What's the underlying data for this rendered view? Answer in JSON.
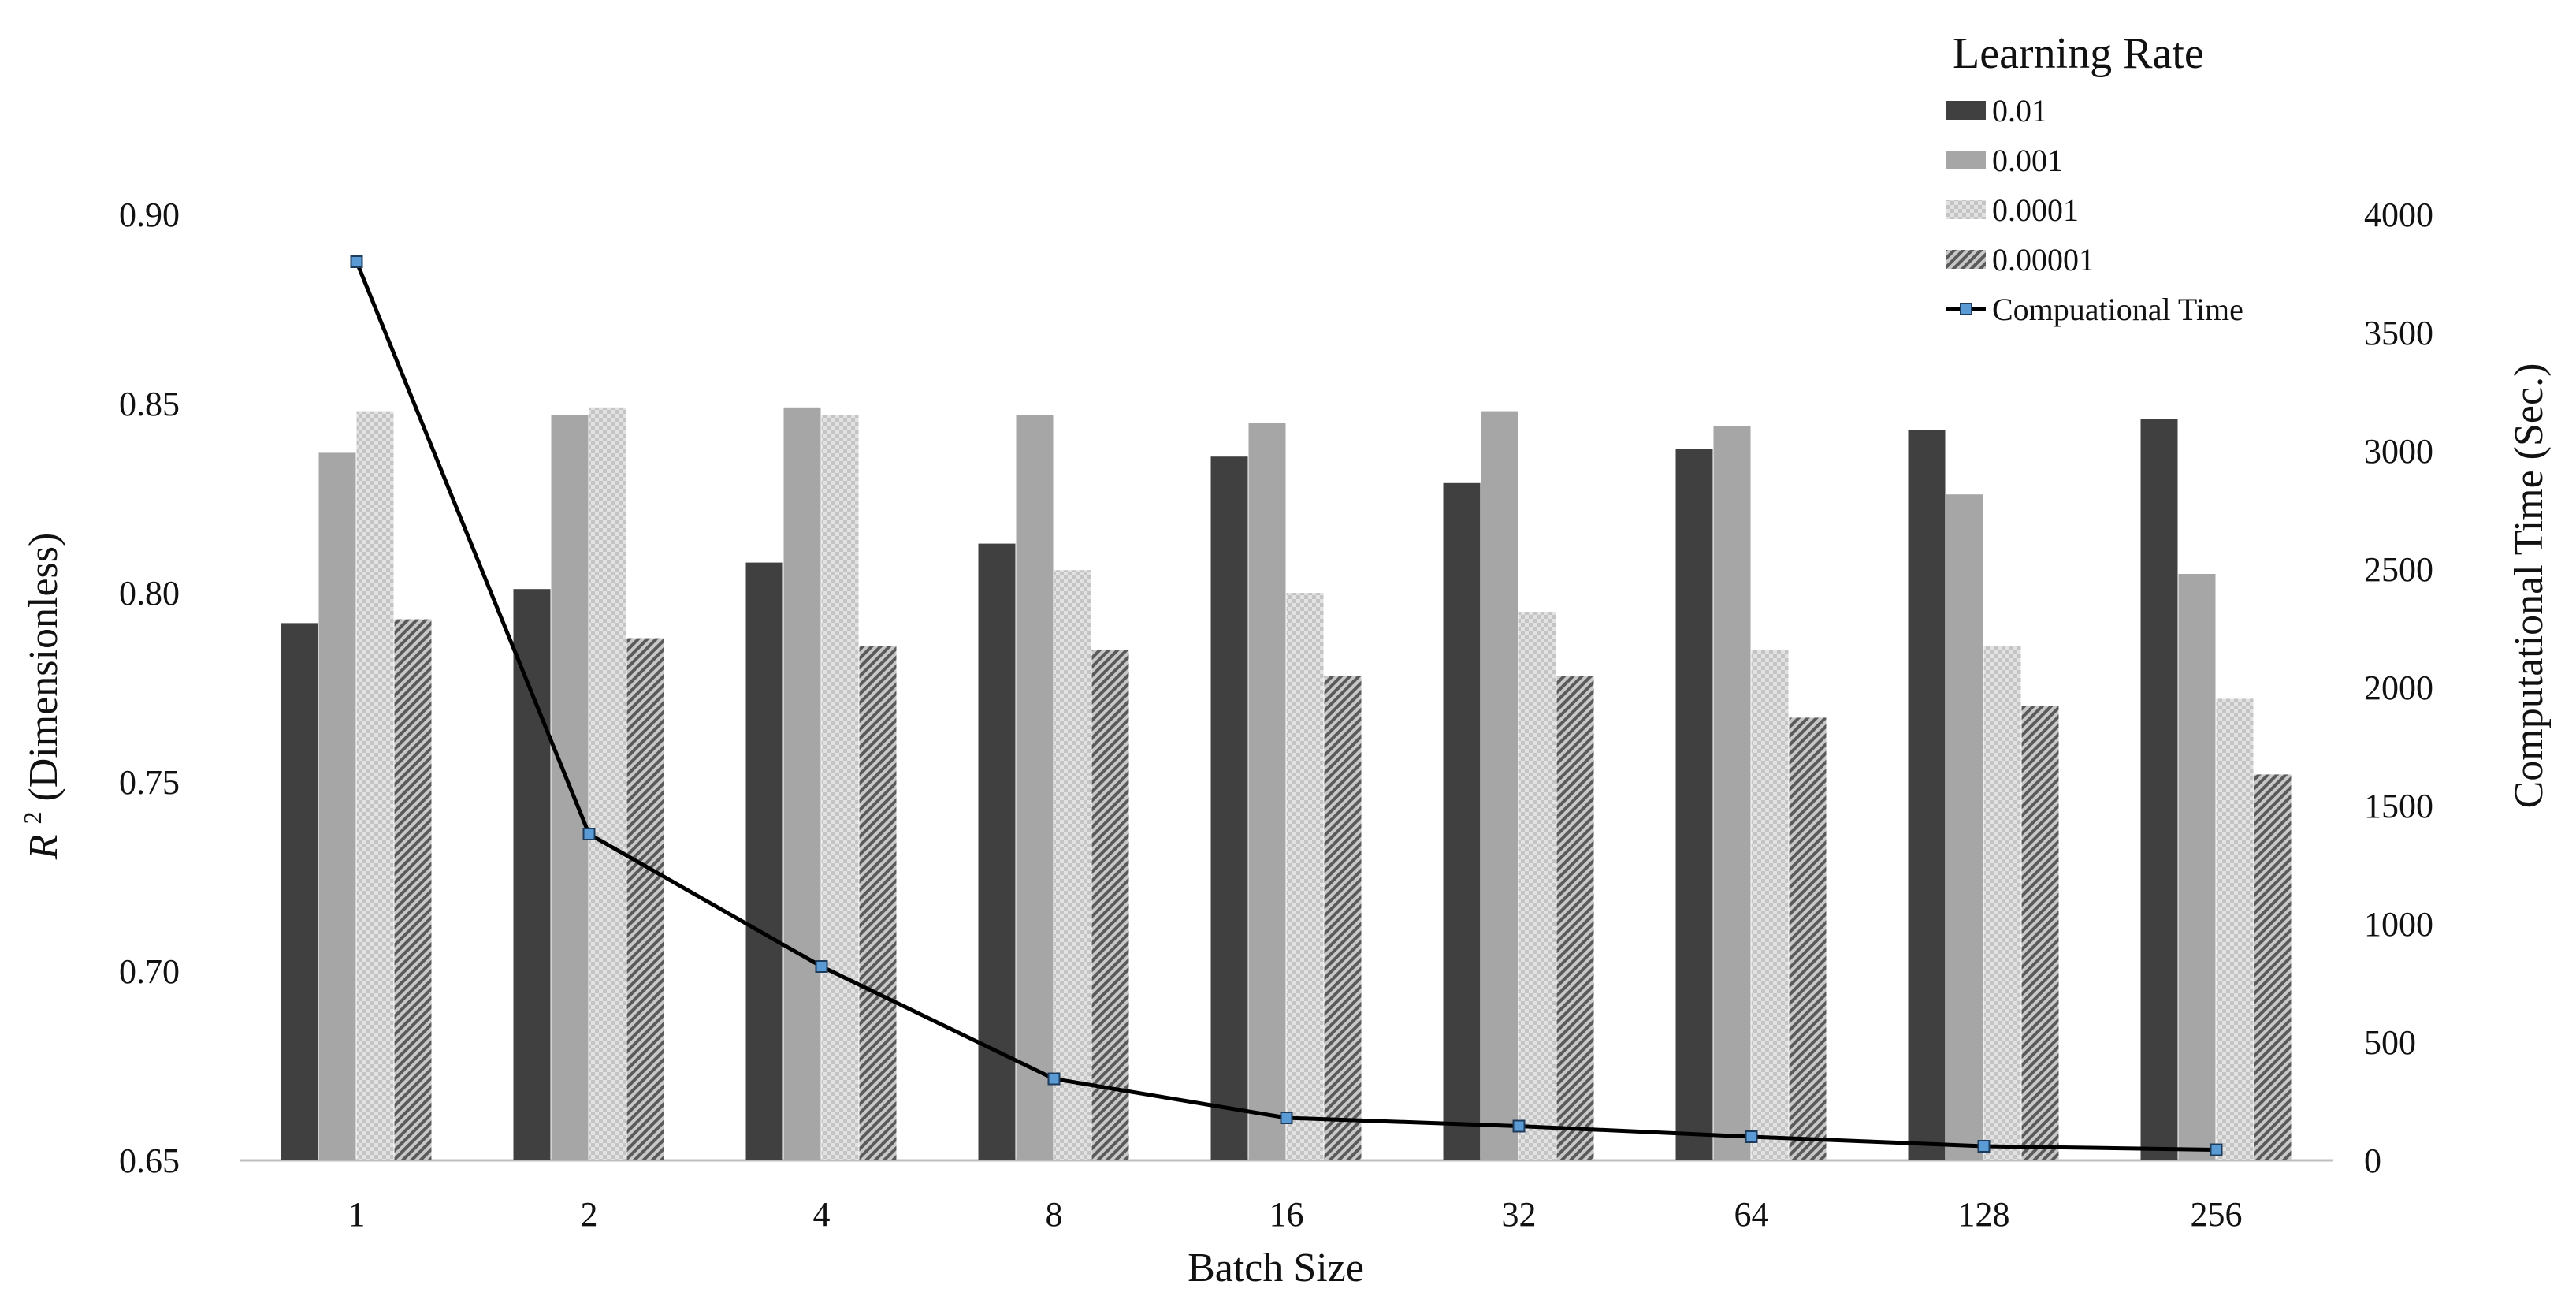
{
  "chart_data": {
    "type": "bar",
    "xlabel": "Batch Size",
    "ylabel_italic": "R",
    "ylabel_superscript": "2",
    "ylabel_rest": " (Dimensionless)",
    "y2label": "Computational Time (Sec.)",
    "categories": [
      "1",
      "2",
      "4",
      "8",
      "16",
      "32",
      "64",
      "128",
      "256"
    ],
    "ylim": [
      0.65,
      0.9
    ],
    "yticks": [
      "0.65",
      "0.70",
      "0.75",
      "0.80",
      "0.85",
      "0.90"
    ],
    "y2lim": [
      0,
      4000
    ],
    "y2ticks": [
      "0",
      "500",
      "1000",
      "1500",
      "2000",
      "2500",
      "3000",
      "3500",
      "4000"
    ],
    "legend_title": "Learning Rate",
    "legend_position": "top-right",
    "grid": false,
    "series": [
      {
        "name": "0.01",
        "kind": "bar",
        "color": "#404040",
        "fill_style": "solid",
        "values": [
          0.792,
          0.801,
          0.808,
          0.813,
          0.836,
          0.829,
          0.838,
          0.843,
          0.846
        ]
      },
      {
        "name": "0.001",
        "kind": "bar",
        "color": "#a6a6a6",
        "fill_style": "solid",
        "values": [
          0.837,
          0.847,
          0.849,
          0.847,
          0.845,
          0.848,
          0.844,
          0.826,
          0.805
        ]
      },
      {
        "name": "0.0001",
        "kind": "bar",
        "color": "#d9d9d9",
        "fill_style": "checker",
        "values": [
          0.848,
          0.849,
          0.847,
          0.806,
          0.8,
          0.795,
          0.785,
          0.786,
          0.772
        ]
      },
      {
        "name": "0.00001",
        "kind": "bar",
        "color": "#8c8c8c",
        "fill_style": "diagonal-hatch",
        "values": [
          0.793,
          0.788,
          0.786,
          0.785,
          0.778,
          0.778,
          0.767,
          0.77,
          0.752
        ]
      },
      {
        "name": "Compuational Time",
        "kind": "line",
        "axis": "secondary",
        "line_color": "#000000",
        "marker_color": "#5b9bd5",
        "values": [
          3800,
          1380,
          820,
          345,
          180,
          145,
          100,
          60,
          45
        ]
      }
    ]
  }
}
